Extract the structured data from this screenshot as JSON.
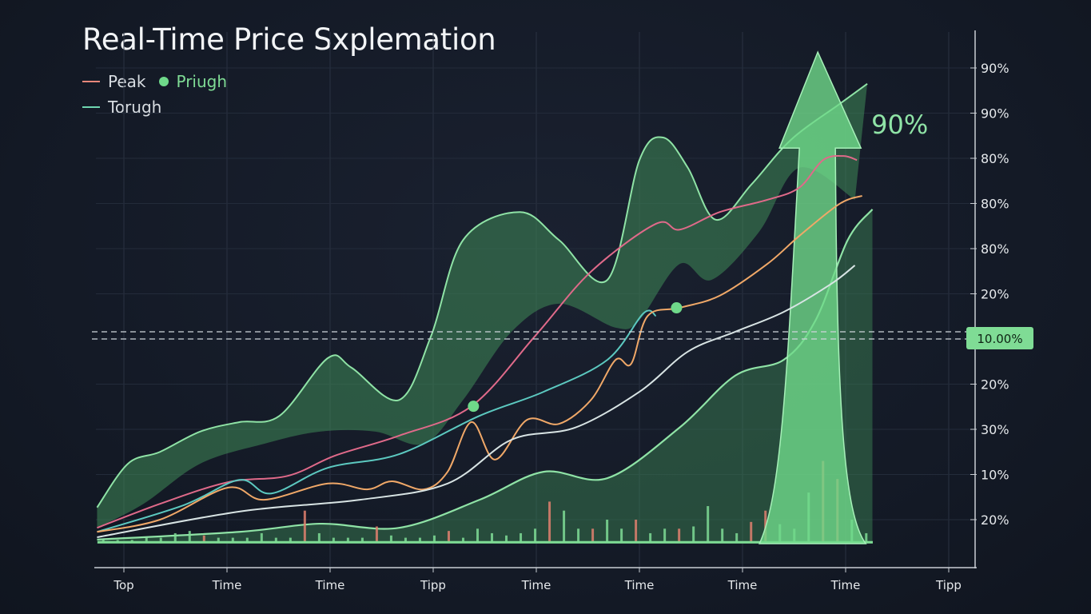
{
  "chart_data": {
    "type": "line",
    "title": "Real-Time Price Sxplemation",
    "legend": {
      "placement": "top-left",
      "entries": [
        {
          "label": "Peak",
          "marker": "line",
          "color": "#e8877a"
        },
        {
          "label": "Priugh",
          "marker": "dot",
          "color": "#6fd98a"
        },
        {
          "label": "Torugh",
          "marker": "line",
          "color": "#6fd6b0"
        }
      ]
    },
    "x_tick_labels": [
      "Top",
      "Time",
      "Time",
      "Tipp",
      "Time",
      "Time",
      "Time",
      "Time",
      "Tipp"
    ],
    "y_axis_position": "right",
    "y_tick_labels": [
      "20%",
      "10%",
      "30%",
      "20%",
      "",
      "20%",
      "80%",
      "80%",
      "80%",
      "90%",
      "90%"
    ],
    "xlim": [
      -0.3,
      8
    ],
    "ylim": [
      -1,
      11
    ],
    "grid": true,
    "marker_line": {
      "label": "10.00%",
      "y": 4,
      "color": "#7fdc95"
    },
    "colors": {
      "background": "#141a26",
      "accent": "#7fdc95",
      "band": "#3f8a58",
      "axis": "#c9ced4"
    },
    "series": [
      {
        "name": "Peak",
        "color": "#e06a8a",
        "x": [
          -0.26,
          0.35,
          1.01,
          1.59,
          2.05,
          2.67,
          3.37,
          3.99,
          4.53,
          5.16,
          5.39,
          5.78,
          6.24,
          6.55,
          6.78,
          6.98,
          7.11
        ],
        "y": [
          -0.18,
          0.35,
          0.83,
          0.97,
          1.42,
          1.86,
          2.51,
          4.07,
          5.49,
          6.55,
          6.42,
          6.81,
          7.08,
          7.35,
          7.96,
          8.05,
          7.96
        ]
      },
      {
        "name": "Torugh",
        "color": "#5cc9c0",
        "x": [
          -0.26,
          0.58,
          1.12,
          1.43,
          1.98,
          2.67,
          3.45,
          4.07,
          4.69,
          5.04,
          5.16
        ],
        "y": [
          -0.27,
          0.32,
          0.88,
          0.58,
          1.15,
          1.45,
          2.3,
          2.83,
          3.54,
          4.57,
          4.51
        ]
      },
      {
        "color": "#f0a868",
        "x": [
          -0.26,
          0.35,
          1.01,
          1.36,
          1.98,
          2.36,
          2.6,
          2.91,
          3.14,
          3.37,
          3.6,
          3.91,
          4.22,
          4.53,
          4.77,
          4.92,
          5.08,
          5.39,
          5.78,
          6.24,
          6.55,
          6.94,
          7.16
        ],
        "y": [
          -0.27,
          0,
          0.71,
          0.44,
          0.8,
          0.67,
          0.85,
          0.67,
          1.06,
          2.16,
          1.33,
          2.21,
          2.12,
          2.65,
          3.54,
          3.45,
          4.51,
          4.69,
          4.96,
          5.66,
          6.28,
          6.99,
          7.17
        ]
      },
      {
        "color": "#d8e4e4",
        "x": [
          -0.26,
          1.12,
          2.29,
          3.14,
          3.76,
          4.38,
          5.0,
          5.47,
          5.93,
          6.4,
          6.86,
          7.09
        ],
        "y": [
          -0.39,
          0.18,
          0.44,
          0.8,
          1.77,
          2.04,
          2.83,
          3.72,
          4.16,
          4.6,
          5.22,
          5.63
        ]
      }
    ],
    "bands": [
      {
        "upper": {
          "x": [
            -0.26,
            0.04,
            0.35,
            0.74,
            1.12,
            1.51,
            1.98,
            2.21,
            2.67,
            2.98,
            3.29,
            3.84,
            4.22,
            4.69,
            5.0,
            5.23,
            5.47,
            5.74,
            6.09,
            6.47,
            6.94,
            7.21
          ],
          "y": [
            0.27,
            1.24,
            1.5,
            1.95,
            2.16,
            2.3,
            3.58,
            3.36,
            2.65,
            4.07,
            6.19,
            6.81,
            6.19,
            5.31,
            7.96,
            8.46,
            7.79,
            6.64,
            7.43,
            8.41,
            9.2,
            9.65
          ]
        },
        "lower": {
          "x": [
            7.09,
            6.55,
            6.16,
            5.7,
            5.39,
            5.0,
            4.77,
            4.22,
            3.76,
            3.29,
            2.91,
            2.44,
            1.9,
            1.36,
            0.74,
            0.19,
            -0.26
          ],
          "y": [
            7.08,
            7.79,
            6.37,
            5.31,
            5.66,
            4.42,
            4.25,
            4.78,
            4.16,
            2.65,
            1.68,
            1.95,
            1.95,
            1.68,
            1.24,
            0.35,
            -0.18
          ]
        }
      },
      {
        "upper": {
          "x": [
            -0.26,
            1.12,
            1.9,
            2.67,
            3.45,
            4.07,
            4.69,
            5.39,
            5.93,
            6.4,
            6.71,
            7.02,
            7.26
          ],
          "y": [
            -0.44,
            -0.27,
            -0.09,
            -0.18,
            0.44,
            1.06,
            0.92,
            2.04,
            3.19,
            3.54,
            4.42,
            6.19,
            6.87
          ]
        },
        "baseline": -0.53
      }
    ],
    "points": [
      {
        "x": 3.39,
        "y": 2.51
      },
      {
        "x": 5.36,
        "y": 4.69
      }
    ],
    "arrow_annotation": {
      "label": "90%",
      "x": 6.73,
      "tip_y": 10.35,
      "base_y": -0.53
    },
    "volume": {
      "baseline": -0.5,
      "values": [
        0.05,
        0.05,
        0.05,
        0.1,
        0.1,
        0.2,
        0.25,
        0.15,
        0.1,
        0.1,
        0.1,
        0.2,
        0.1,
        0.1,
        0.7,
        0.2,
        0.1,
        0.1,
        0.1,
        0.35,
        0.15,
        0.1,
        0.1,
        0.15,
        0.25,
        0.1,
        0.3,
        0.2,
        0.15,
        0.2,
        0.3,
        0.9,
        0.7,
        0.3,
        0.3,
        0.5,
        0.3,
        0.5,
        0.2,
        0.3,
        0.3,
        0.35,
        0.8,
        0.3,
        0.2,
        0.45,
        0.7,
        0.4,
        0.3,
        1.1,
        1.8,
        1.4,
        0.5,
        0.2
      ],
      "up": [
        "g",
        "g",
        "g",
        "g",
        "g",
        "g",
        "g",
        "r",
        "g",
        "g",
        "g",
        "g",
        "g",
        "g",
        "r",
        "g",
        "g",
        "g",
        "g",
        "r",
        "g",
        "g",
        "g",
        "g",
        "r",
        "g",
        "g",
        "g",
        "g",
        "g",
        "g",
        "r",
        "g",
        "g",
        "r",
        "g",
        "g",
        "r",
        "g",
        "g",
        "r",
        "g",
        "g",
        "g",
        "g",
        "r",
        "r",
        "g",
        "g",
        "g",
        "r",
        "r",
        "g",
        "g"
      ],
      "colors": {
        "g": "#7fdc95",
        "r": "#e0806e"
      }
    }
  }
}
